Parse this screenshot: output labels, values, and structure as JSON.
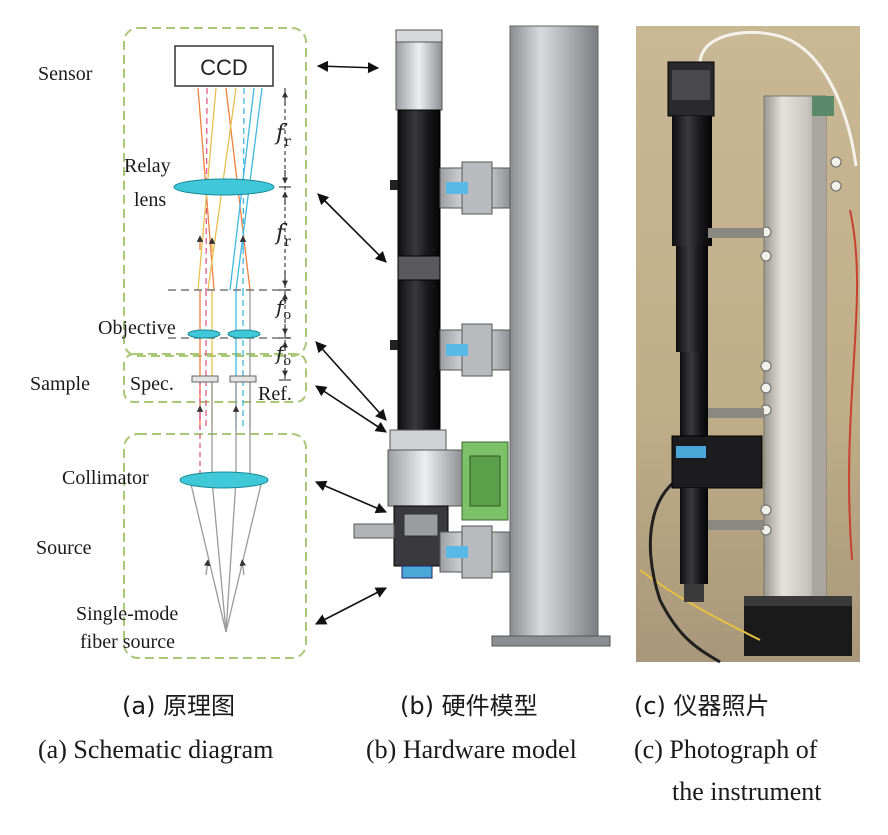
{
  "schematic": {
    "labels": {
      "sensor": "Sensor",
      "ccd": "CCD",
      "relay_line1": "Relay",
      "relay_line2": "lens",
      "objective": "Objective",
      "sample": "Sample",
      "spec": "Spec.",
      "ref": "Ref.",
      "collimator": "Collimator",
      "source": "Source",
      "fiber_line1": "Single-mode",
      "fiber_line2": "fiber source"
    },
    "dimensions": {
      "f_r_symbol": "f",
      "f_r_sub": "r",
      "f_o_symbol": "f",
      "f_o_sub": "o"
    },
    "colors": {
      "dashed_box": "#a8c878",
      "lens_fill": "#3ec8d8",
      "ray_orange": "#f08040",
      "ray_pink": "#e05a8a",
      "ray_yellow": "#e8c050",
      "ray_blue": "#40b8e0",
      "ray_gray": "#9a9a9a"
    }
  },
  "captions": {
    "a_zh": "(a) 原理图",
    "a_en": "(a) Schematic diagram",
    "b_zh": "(b) 硬件模型",
    "b_en": "(b) Hardware model",
    "c_zh": "(c) 仪器照片",
    "c_en_line1": "(c) Photograph of",
    "c_en_line2": "the instrument"
  }
}
